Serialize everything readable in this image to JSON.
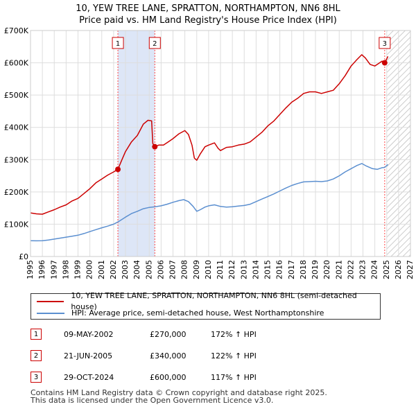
{
  "header": {
    "title_line1": "10, YEW TREE LANE, SPRATTON, NORTHAMPTON, NN6 8HL",
    "title_line2": "Price paid vs. HM Land Registry's House Price Index (HPI)"
  },
  "colors": {
    "property": "#cc0000",
    "hpi": "#5b8fd0",
    "shade": "#dde6f7",
    "grid": "#dddddd",
    "vline": "#ff4444"
  },
  "chart_data": {
    "type": "line",
    "title": "10, YEW TREE LANE, SPRATTON, NORTHAMPTON, NN6 8HL — Price paid vs. HM Land Registry's House Price Index (HPI)",
    "xlabel": "",
    "ylabel": "",
    "xlim": [
      1995,
      2027
    ],
    "ylim": [
      0,
      700000
    ],
    "x_ticks": [
      "1995",
      "1996",
      "1997",
      "1998",
      "1999",
      "2000",
      "2001",
      "2002",
      "2003",
      "2004",
      "2005",
      "2006",
      "2007",
      "2008",
      "2009",
      "2010",
      "2011",
      "2012",
      "2013",
      "2014",
      "2015",
      "2016",
      "2017",
      "2018",
      "2019",
      "2020",
      "2021",
      "2022",
      "2023",
      "2024",
      "2025",
      "2026",
      "2027"
    ],
    "y_ticks": [
      {
        "value": 0,
        "label": "£0"
      },
      {
        "value": 100000,
        "label": "£100K"
      },
      {
        "value": 200000,
        "label": "£200K"
      },
      {
        "value": 300000,
        "label": "£300K"
      },
      {
        "value": 400000,
        "label": "£400K"
      },
      {
        "value": 500000,
        "label": "£500K"
      },
      {
        "value": 600000,
        "label": "£600K"
      },
      {
        "value": 700000,
        "label": "£700K"
      }
    ],
    "shaded_range": [
      2002.36,
      2005.47
    ],
    "hatched_from": 2025.0,
    "series": [
      {
        "name": "10, YEW TREE LANE, SPRATTON, NORTHAMPTON, NN6 8HL (semi-detached house)",
        "color": "#cc0000",
        "points": [
          [
            1995,
            135000
          ],
          [
            1995.5,
            132000
          ],
          [
            1996,
            131000
          ],
          [
            1996.5,
            138000
          ],
          [
            1997,
            145000
          ],
          [
            1997.5,
            153000
          ],
          [
            1998,
            160000
          ],
          [
            1998.5,
            172000
          ],
          [
            1999,
            180000
          ],
          [
            1999.5,
            195000
          ],
          [
            2000,
            210000
          ],
          [
            2000.5,
            228000
          ],
          [
            2001,
            240000
          ],
          [
            2001.5,
            252000
          ],
          [
            2002,
            262000
          ],
          [
            2002.36,
            270000
          ],
          [
            2002.7,
            300000
          ],
          [
            2003,
            325000
          ],
          [
            2003.5,
            355000
          ],
          [
            2004,
            375000
          ],
          [
            2004.5,
            410000
          ],
          [
            2004.9,
            422000
          ],
          [
            2005.2,
            420000
          ],
          [
            2005.3,
            350000
          ],
          [
            2005.47,
            340000
          ],
          [
            2005.8,
            345000
          ],
          [
            2006.2,
            345000
          ],
          [
            2006.6,
            355000
          ],
          [
            2007,
            365000
          ],
          [
            2007.5,
            380000
          ],
          [
            2008,
            390000
          ],
          [
            2008.3,
            378000
          ],
          [
            2008.6,
            345000
          ],
          [
            2008.8,
            305000
          ],
          [
            2009.0,
            298000
          ],
          [
            2009.3,
            318000
          ],
          [
            2009.7,
            340000
          ],
          [
            2010,
            345000
          ],
          [
            2010.5,
            352000
          ],
          [
            2010.8,
            335000
          ],
          [
            2011,
            328000
          ],
          [
            2011.5,
            338000
          ],
          [
            2012,
            340000
          ],
          [
            2012.5,
            345000
          ],
          [
            2013,
            348000
          ],
          [
            2013.5,
            355000
          ],
          [
            2014,
            370000
          ],
          [
            2014.5,
            385000
          ],
          [
            2015,
            405000
          ],
          [
            2015.5,
            420000
          ],
          [
            2016,
            440000
          ],
          [
            2016.5,
            460000
          ],
          [
            2017,
            478000
          ],
          [
            2017.5,
            490000
          ],
          [
            2018,
            505000
          ],
          [
            2018.5,
            510000
          ],
          [
            2019,
            510000
          ],
          [
            2019.5,
            505000
          ],
          [
            2020,
            510000
          ],
          [
            2020.5,
            515000
          ],
          [
            2021,
            535000
          ],
          [
            2021.5,
            560000
          ],
          [
            2022,
            590000
          ],
          [
            2022.5,
            610000
          ],
          [
            2022.9,
            625000
          ],
          [
            2023.2,
            615000
          ],
          [
            2023.6,
            595000
          ],
          [
            2024,
            590000
          ],
          [
            2024.4,
            600000
          ],
          [
            2024.6,
            605000
          ],
          [
            2024.83,
            600000
          ],
          [
            2025.0,
            612000
          ],
          [
            2025.1,
            620000
          ]
        ]
      },
      {
        "name": "HPI: Average price, semi-detached house, West Northamptonshire",
        "color": "#5b8fd0",
        "points": [
          [
            1995,
            49000
          ],
          [
            1995.5,
            48500
          ],
          [
            1996,
            49000
          ],
          [
            1996.5,
            51000
          ],
          [
            1997,
            54000
          ],
          [
            1997.5,
            57000
          ],
          [
            1998,
            60000
          ],
          [
            1998.5,
            63000
          ],
          [
            1999,
            66000
          ],
          [
            1999.5,
            71000
          ],
          [
            2000,
            77000
          ],
          [
            2000.5,
            83000
          ],
          [
            2001,
            89000
          ],
          [
            2001.5,
            94000
          ],
          [
            2002,
            100000
          ],
          [
            2002.5,
            110000
          ],
          [
            2003,
            122000
          ],
          [
            2003.5,
            133000
          ],
          [
            2004,
            140000
          ],
          [
            2004.5,
            148000
          ],
          [
            2005,
            152000
          ],
          [
            2005.5,
            154000
          ],
          [
            2006,
            157000
          ],
          [
            2006.5,
            162000
          ],
          [
            2007,
            168000
          ],
          [
            2007.5,
            173000
          ],
          [
            2007.9,
            176000
          ],
          [
            2008.3,
            170000
          ],
          [
            2008.7,
            155000
          ],
          [
            2009.0,
            140000
          ],
          [
            2009.3,
            145000
          ],
          [
            2009.7,
            153000
          ],
          [
            2010,
            157000
          ],
          [
            2010.5,
            160000
          ],
          [
            2011,
            155000
          ],
          [
            2011.5,
            153000
          ],
          [
            2012,
            154000
          ],
          [
            2012.5,
            156000
          ],
          [
            2013,
            158000
          ],
          [
            2013.5,
            162000
          ],
          [
            2014,
            170000
          ],
          [
            2014.5,
            178000
          ],
          [
            2015,
            186000
          ],
          [
            2015.5,
            194000
          ],
          [
            2016,
            203000
          ],
          [
            2016.5,
            212000
          ],
          [
            2017,
            220000
          ],
          [
            2017.5,
            226000
          ],
          [
            2018,
            231000
          ],
          [
            2018.5,
            232000
          ],
          [
            2019,
            233000
          ],
          [
            2019.5,
            232000
          ],
          [
            2020,
            234000
          ],
          [
            2020.5,
            240000
          ],
          [
            2021,
            250000
          ],
          [
            2021.5,
            262000
          ],
          [
            2022,
            272000
          ],
          [
            2022.5,
            282000
          ],
          [
            2022.9,
            288000
          ],
          [
            2023.3,
            280000
          ],
          [
            2023.8,
            272000
          ],
          [
            2024.2,
            270000
          ],
          [
            2024.6,
            275000
          ],
          [
            2024.83,
            276000
          ],
          [
            2025.1,
            285000
          ]
        ]
      }
    ],
    "annotations": [
      {
        "label": "1",
        "x": 2002.36,
        "value": 270000
      },
      {
        "label": "2",
        "x": 2005.47,
        "value": 340000
      },
      {
        "label": "3",
        "x": 2024.83,
        "value": 600000
      }
    ]
  },
  "legend": {
    "property_label": "10, YEW TREE LANE, SPRATTON, NORTHAMPTON, NN6 8HL (semi-detached house)",
    "hpi_label": "HPI: Average price, semi-detached house, West Northamptonshire"
  },
  "sales": [
    {
      "num": "1",
      "date": "09-MAY-2002",
      "price": "£270,000",
      "hpi": "172% ↑ HPI"
    },
    {
      "num": "2",
      "date": "21-JUN-2005",
      "price": "£340,000",
      "hpi": "122% ↑ HPI"
    },
    {
      "num": "3",
      "date": "29-OCT-2024",
      "price": "£600,000",
      "hpi": "117% ↑ HPI"
    }
  ],
  "footer": {
    "line1": "Contains HM Land Registry data © Crown copyright and database right 2025.",
    "line2": "This data is licensed under the Open Government Licence v3.0."
  }
}
